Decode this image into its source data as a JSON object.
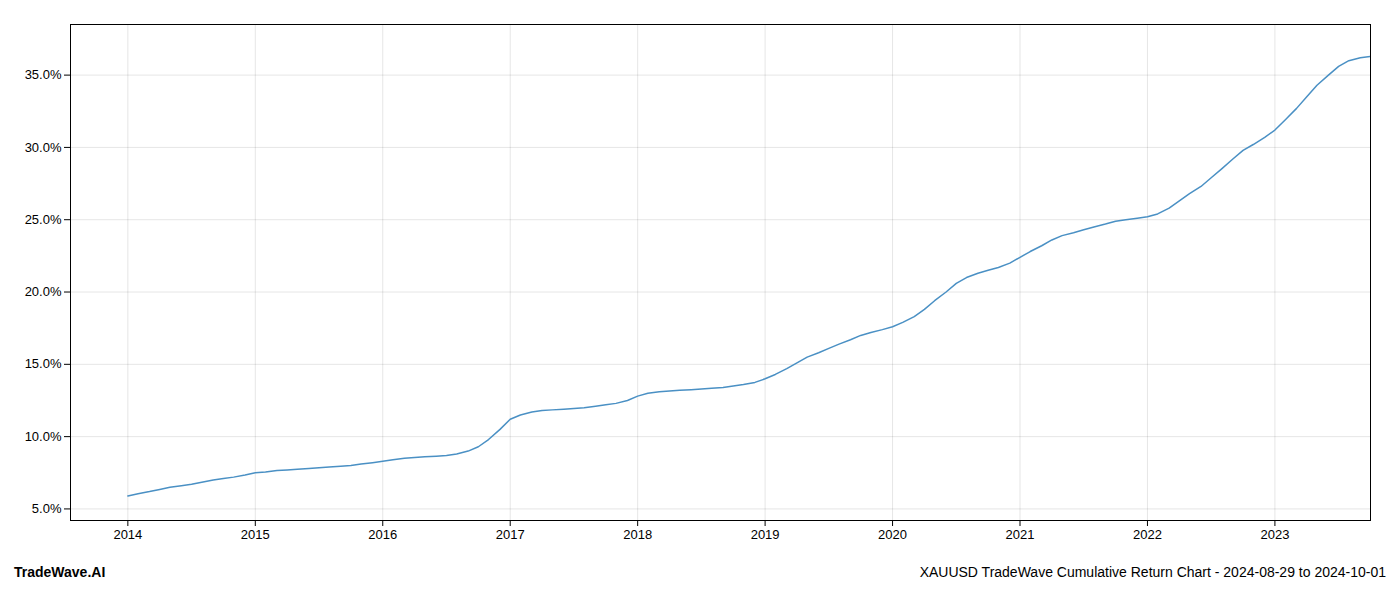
{
  "chart_data": {
    "type": "line",
    "x": [
      2014.0,
      2014.08,
      2014.17,
      2014.25,
      2014.33,
      2014.42,
      2014.5,
      2014.58,
      2014.67,
      2014.75,
      2014.83,
      2014.92,
      2015.0,
      2015.08,
      2015.17,
      2015.25,
      2015.33,
      2015.42,
      2015.5,
      2015.58,
      2015.67,
      2015.75,
      2015.83,
      2015.92,
      2016.0,
      2016.08,
      2016.17,
      2016.25,
      2016.33,
      2016.42,
      2016.5,
      2016.58,
      2016.67,
      2016.75,
      2016.83,
      2016.92,
      2017.0,
      2017.08,
      2017.17,
      2017.25,
      2017.33,
      2017.42,
      2017.5,
      2017.58,
      2017.67,
      2017.75,
      2017.83,
      2017.92,
      2018.0,
      2018.08,
      2018.17,
      2018.25,
      2018.33,
      2018.42,
      2018.5,
      2018.58,
      2018.67,
      2018.75,
      2018.83,
      2018.92,
      2019.0,
      2019.08,
      2019.17,
      2019.25,
      2019.33,
      2019.42,
      2019.5,
      2019.58,
      2019.67,
      2019.75,
      2019.83,
      2019.92,
      2020.0,
      2020.08,
      2020.17,
      2020.25,
      2020.33,
      2020.42,
      2020.5,
      2020.58,
      2020.67,
      2020.75,
      2020.83,
      2020.92,
      2021.0,
      2021.08,
      2021.17,
      2021.25,
      2021.33,
      2021.42,
      2021.5,
      2021.58,
      2021.67,
      2021.75,
      2021.83,
      2021.92,
      2022.0,
      2022.08,
      2022.17,
      2022.25,
      2022.33,
      2022.42,
      2022.5,
      2022.58,
      2022.67,
      2022.75,
      2022.83,
      2022.92,
      2023.0,
      2023.08,
      2023.17,
      2023.25,
      2023.33,
      2023.42,
      2023.5,
      2023.58,
      2023.67,
      2023.75
    ],
    "values": [
      5.9,
      6.05,
      6.2,
      6.35,
      6.5,
      6.6,
      6.7,
      6.85,
      7.0,
      7.1,
      7.2,
      7.35,
      7.5,
      7.55,
      7.65,
      7.7,
      7.75,
      7.8,
      7.85,
      7.9,
      7.95,
      8.0,
      8.1,
      8.2,
      8.3,
      8.4,
      8.5,
      8.55,
      8.6,
      8.65,
      8.7,
      8.8,
      9.0,
      9.3,
      9.8,
      10.5,
      11.2,
      11.5,
      11.7,
      11.8,
      11.85,
      11.9,
      11.95,
      12.0,
      12.1,
      12.2,
      12.3,
      12.5,
      12.8,
      13.0,
      13.1,
      13.15,
      13.2,
      13.25,
      13.3,
      13.35,
      13.4,
      13.5,
      13.6,
      13.75,
      14.0,
      14.3,
      14.7,
      15.1,
      15.5,
      15.8,
      16.1,
      16.4,
      16.7,
      17.0,
      17.2,
      17.4,
      17.6,
      17.9,
      18.3,
      18.8,
      19.4,
      20.0,
      20.6,
      21.0,
      21.3,
      21.5,
      21.7,
      22.0,
      22.4,
      22.8,
      23.2,
      23.6,
      23.9,
      24.1,
      24.3,
      24.5,
      24.7,
      24.9,
      25.0,
      25.1,
      25.2,
      25.4,
      25.8,
      26.3,
      26.8,
      27.3,
      27.9,
      28.5,
      29.2,
      29.8,
      30.2,
      30.7,
      31.2,
      31.9,
      32.7,
      33.5,
      34.3,
      35.0,
      35.6,
      36.0,
      36.2,
      36.3
    ],
    "color": "#4a90c4",
    "xlim": [
      2013.55,
      2023.75
    ],
    "xticks": [
      2014,
      2015,
      2016,
      2017,
      2018,
      2019,
      2020,
      2021,
      2022,
      2023
    ],
    "ylim": [
      4.2,
      38.5
    ],
    "yticks": [
      {
        "value": 5.0,
        "label": "5.0%"
      },
      {
        "value": 10.0,
        "label": "10.0%"
      },
      {
        "value": 15.0,
        "label": "15.0%"
      },
      {
        "value": 20.0,
        "label": "20.0%"
      },
      {
        "value": 25.0,
        "label": "25.0%"
      },
      {
        "value": 30.0,
        "label": "30.0%"
      },
      {
        "value": 35.0,
        "label": "35.0%"
      }
    ],
    "grid": true,
    "annotations": [
      "TradeWave.AI",
      "XAUUSD TradeWave Cumulative Return Chart - 2024-08-29 to 2024-10-01"
    ]
  }
}
